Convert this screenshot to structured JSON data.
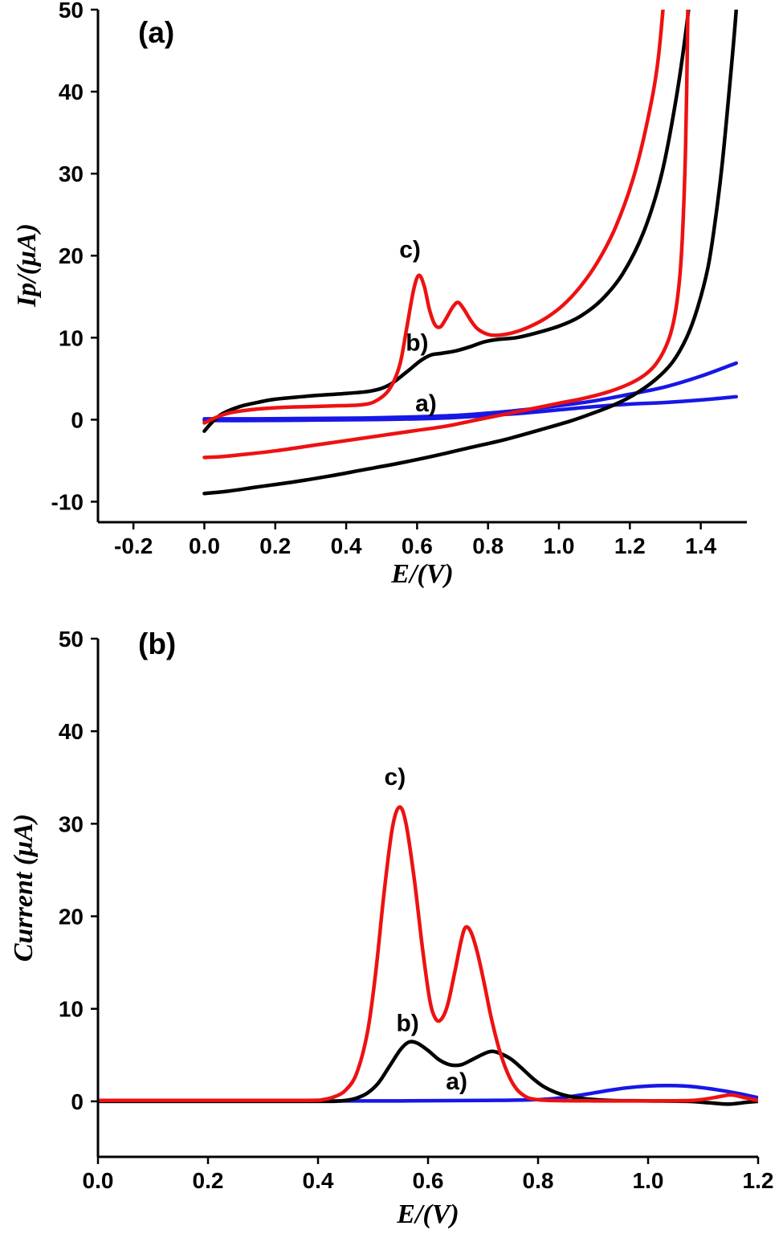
{
  "page": {
    "background": "#ffffff"
  },
  "chart_data": [
    {
      "id": "panel-a",
      "type": "line",
      "panel_label": "(a)",
      "xlabel": "E/(V)",
      "ylabel": "Ip/(μA)",
      "xlim": [
        -0.3,
        1.53
      ],
      "ylim": [
        -12.5,
        50
      ],
      "grid": false,
      "legend": "none",
      "xticks": [
        -0.2,
        0.0,
        0.2,
        0.4,
        0.6,
        0.8,
        1.0,
        1.2,
        1.4
      ],
      "xtick_labels": [
        "-0.2",
        "0.0",
        "0.2",
        "0.4",
        "0.6",
        "0.8",
        "1.0",
        "1.2",
        "1.4"
      ],
      "yticks": [
        -10,
        0,
        10,
        20,
        30,
        40,
        50
      ],
      "ytick_labels": [
        "-10",
        "0",
        "10",
        "20",
        "30",
        "40",
        "50"
      ],
      "annotations": [
        {
          "text": "c)",
          "x": 0.58,
          "y": 19.8
        },
        {
          "text": "b)",
          "x": 0.6,
          "y": 8.4
        },
        {
          "text": "a)",
          "x": 0.625,
          "y": 1.0
        }
      ],
      "series": [
        {
          "name": "a-blue-forward",
          "color": "#1717e6",
          "points": [
            [
              0.0,
              0.1
            ],
            [
              0.15,
              0.1
            ],
            [
              0.3,
              0.15
            ],
            [
              0.45,
              0.2
            ],
            [
              0.6,
              0.35
            ],
            [
              0.7,
              0.5
            ],
            [
              0.8,
              0.8
            ],
            [
              0.9,
              1.2
            ],
            [
              1.0,
              1.7
            ],
            [
              1.1,
              2.3
            ],
            [
              1.2,
              3.1
            ],
            [
              1.3,
              4.0
            ],
            [
              1.4,
              5.3
            ],
            [
              1.5,
              6.9
            ]
          ]
        },
        {
          "name": "a-blue-reverse",
          "color": "#1717e6",
          "points": [
            [
              1.5,
              2.8
            ],
            [
              1.4,
              2.4
            ],
            [
              1.3,
              2.1
            ],
            [
              1.2,
              1.9
            ],
            [
              1.1,
              1.6
            ],
            [
              1.0,
              1.2
            ],
            [
              0.9,
              0.8
            ],
            [
              0.8,
              0.5
            ],
            [
              0.7,
              0.25
            ],
            [
              0.6,
              0.1
            ],
            [
              0.45,
              0.0
            ],
            [
              0.3,
              -0.05
            ],
            [
              0.15,
              -0.1
            ],
            [
              0.0,
              -0.1
            ]
          ]
        },
        {
          "name": "b-black-forward",
          "color": "#000000",
          "points": [
            [
              0.0,
              -1.4
            ],
            [
              0.02,
              -0.4
            ],
            [
              0.05,
              0.7
            ],
            [
              0.1,
              1.6
            ],
            [
              0.15,
              2.1
            ],
            [
              0.2,
              2.5
            ],
            [
              0.3,
              2.9
            ],
            [
              0.4,
              3.2
            ],
            [
              0.47,
              3.5
            ],
            [
              0.52,
              4.2
            ],
            [
              0.57,
              5.8
            ],
            [
              0.61,
              7.2
            ],
            [
              0.64,
              7.9
            ],
            [
              0.67,
              8.1
            ],
            [
              0.71,
              8.4
            ],
            [
              0.75,
              8.9
            ],
            [
              0.79,
              9.5
            ],
            [
              0.83,
              9.8
            ],
            [
              0.88,
              10.0
            ],
            [
              0.93,
              10.5
            ],
            [
              1.0,
              11.4
            ],
            [
              1.06,
              12.6
            ],
            [
              1.12,
              14.6
            ],
            [
              1.18,
              17.8
            ],
            [
              1.24,
              23.0
            ],
            [
              1.29,
              30.0
            ],
            [
              1.33,
              39.0
            ],
            [
              1.36,
              48.0
            ],
            [
              1.38,
              56.0
            ]
          ]
        },
        {
          "name": "b-black-reverse",
          "color": "#000000",
          "points": [
            [
              1.505,
              56.0
            ],
            [
              1.5,
              50.0
            ],
            [
              1.48,
              40.0
            ],
            [
              1.46,
              31.0
            ],
            [
              1.44,
              24.0
            ],
            [
              1.42,
              18.5
            ],
            [
              1.39,
              13.5
            ],
            [
              1.36,
              10.0
            ],
            [
              1.32,
              7.0
            ],
            [
              1.27,
              4.8
            ],
            [
              1.21,
              3.0
            ],
            [
              1.15,
              1.7
            ],
            [
              1.09,
              0.7
            ],
            [
              1.03,
              -0.2
            ],
            [
              0.95,
              -1.2
            ],
            [
              0.85,
              -2.4
            ],
            [
              0.75,
              -3.4
            ],
            [
              0.65,
              -4.4
            ],
            [
              0.55,
              -5.3
            ],
            [
              0.45,
              -6.1
            ],
            [
              0.35,
              -6.9
            ],
            [
              0.25,
              -7.6
            ],
            [
              0.15,
              -8.2
            ],
            [
              0.07,
              -8.7
            ],
            [
              0.0,
              -9.0
            ]
          ]
        },
        {
          "name": "c-red-forward",
          "color": "#ee1111",
          "points": [
            [
              0.0,
              -0.4
            ],
            [
              0.04,
              0.4
            ],
            [
              0.08,
              0.9
            ],
            [
              0.15,
              1.3
            ],
            [
              0.22,
              1.5
            ],
            [
              0.3,
              1.6
            ],
            [
              0.38,
              1.7
            ],
            [
              0.44,
              1.8
            ],
            [
              0.48,
              2.2
            ],
            [
              0.52,
              3.6
            ],
            [
              0.55,
              6.5
            ],
            [
              0.57,
              11.0
            ],
            [
              0.59,
              15.8
            ],
            [
              0.605,
              17.6
            ],
            [
              0.62,
              16.3
            ],
            [
              0.635,
              13.4
            ],
            [
              0.65,
              11.6
            ],
            [
              0.665,
              11.3
            ],
            [
              0.68,
              12.2
            ],
            [
              0.7,
              13.7
            ],
            [
              0.715,
              14.3
            ],
            [
              0.73,
              13.6
            ],
            [
              0.75,
              12.2
            ],
            [
              0.77,
              11.1
            ],
            [
              0.8,
              10.4
            ],
            [
              0.83,
              10.3
            ],
            [
              0.87,
              10.6
            ],
            [
              0.91,
              11.2
            ],
            [
              0.96,
              12.3
            ],
            [
              1.01,
              13.9
            ],
            [
              1.06,
              16.2
            ],
            [
              1.11,
              19.3
            ],
            [
              1.16,
              23.5
            ],
            [
              1.21,
              29.5
            ],
            [
              1.25,
              36.5
            ],
            [
              1.28,
              44.0
            ],
            [
              1.305,
              56.0
            ]
          ]
        },
        {
          "name": "c-red-reverse",
          "color": "#ee1111",
          "points": [
            [
              1.365,
              56.0
            ],
            [
              1.362,
              45.0
            ],
            [
              1.357,
              33.0
            ],
            [
              1.35,
              24.0
            ],
            [
              1.342,
              18.0
            ],
            [
              1.33,
              13.5
            ],
            [
              1.315,
              10.5
            ],
            [
              1.295,
              8.3
            ],
            [
              1.27,
              6.6
            ],
            [
              1.24,
              5.4
            ],
            [
              1.2,
              4.4
            ],
            [
              1.14,
              3.4
            ],
            [
              1.07,
              2.6
            ],
            [
              1.0,
              2.0
            ],
            [
              0.92,
              1.3
            ],
            [
              0.84,
              0.6
            ],
            [
              0.76,
              -0.1
            ],
            [
              0.68,
              -0.8
            ],
            [
              0.6,
              -1.3
            ],
            [
              0.52,
              -1.8
            ],
            [
              0.44,
              -2.3
            ],
            [
              0.36,
              -2.8
            ],
            [
              0.28,
              -3.3
            ],
            [
              0.2,
              -3.8
            ],
            [
              0.12,
              -4.2
            ],
            [
              0.05,
              -4.5
            ],
            [
              0.0,
              -4.6
            ]
          ]
        }
      ]
    },
    {
      "id": "panel-b",
      "type": "line",
      "panel_label": "(b)",
      "xlabel": "E/(V)",
      "ylabel": "Current (μA)",
      "xlim": [
        0.0,
        1.2
      ],
      "ylim": [
        -6,
        50
      ],
      "grid": false,
      "legend": "none",
      "xticks": [
        0.0,
        0.2,
        0.4,
        0.6,
        0.8,
        1.0,
        1.2
      ],
      "xtick_labels": [
        "0.0",
        "0.2",
        "0.4",
        "0.6",
        "0.8",
        "1.0",
        "1.2"
      ],
      "yticks": [
        0,
        10,
        20,
        30,
        40,
        50
      ],
      "ytick_labels": [
        "0",
        "10",
        "20",
        "30",
        "40",
        "50"
      ],
      "annotations": [
        {
          "text": "c)",
          "x": 0.54,
          "y": 34.2
        },
        {
          "text": "b)",
          "x": 0.563,
          "y": 7.6
        },
        {
          "text": "a)",
          "x": 0.652,
          "y": 1.3
        }
      ],
      "series": [
        {
          "name": "a-blue",
          "color": "#1717e6",
          "points": [
            [
              0.0,
              0.05
            ],
            [
              0.3,
              0.05
            ],
            [
              0.55,
              0.05
            ],
            [
              0.7,
              0.1
            ],
            [
              0.78,
              0.15
            ],
            [
              0.83,
              0.3
            ],
            [
              0.88,
              0.7
            ],
            [
              0.92,
              1.1
            ],
            [
              0.96,
              1.45
            ],
            [
              1.0,
              1.65
            ],
            [
              1.04,
              1.7
            ],
            [
              1.08,
              1.6
            ],
            [
              1.12,
              1.3
            ],
            [
              1.16,
              0.9
            ],
            [
              1.2,
              0.4
            ]
          ]
        },
        {
          "name": "b-black",
          "color": "#000000",
          "points": [
            [
              0.0,
              0.0
            ],
            [
              0.3,
              0.0
            ],
            [
              0.42,
              0.0
            ],
            [
              0.45,
              0.1
            ],
            [
              0.47,
              0.35
            ],
            [
              0.49,
              0.9
            ],
            [
              0.51,
              2.0
            ],
            [
              0.53,
              3.8
            ],
            [
              0.55,
              5.6
            ],
            [
              0.565,
              6.4
            ],
            [
              0.58,
              6.3
            ],
            [
              0.6,
              5.5
            ],
            [
              0.62,
              4.5
            ],
            [
              0.64,
              3.95
            ],
            [
              0.66,
              3.95
            ],
            [
              0.68,
              4.5
            ],
            [
              0.7,
              5.1
            ],
            [
              0.715,
              5.4
            ],
            [
              0.73,
              5.2
            ],
            [
              0.75,
              4.6
            ],
            [
              0.77,
              3.6
            ],
            [
              0.79,
              2.5
            ],
            [
              0.81,
              1.6
            ],
            [
              0.835,
              0.9
            ],
            [
              0.86,
              0.5
            ],
            [
              0.89,
              0.25
            ],
            [
              0.93,
              0.1
            ],
            [
              1.0,
              0.05
            ],
            [
              1.07,
              0.0
            ],
            [
              1.11,
              -0.15
            ],
            [
              1.145,
              -0.3
            ],
            [
              1.18,
              -0.1
            ],
            [
              1.2,
              0.0
            ]
          ]
        },
        {
          "name": "c-red",
          "color": "#ee1111",
          "points": [
            [
              0.0,
              0.1
            ],
            [
              0.2,
              0.1
            ],
            [
              0.38,
              0.1
            ],
            [
              0.41,
              0.2
            ],
            [
              0.43,
              0.5
            ],
            [
              0.45,
              1.2
            ],
            [
              0.47,
              3.0
            ],
            [
              0.49,
              7.5
            ],
            [
              0.505,
              14.0
            ],
            [
              0.52,
              22.5
            ],
            [
              0.535,
              29.5
            ],
            [
              0.548,
              31.8
            ],
            [
              0.56,
              30.0
            ],
            [
              0.575,
              24.0
            ],
            [
              0.59,
              16.5
            ],
            [
              0.603,
              11.0
            ],
            [
              0.613,
              9.0
            ],
            [
              0.623,
              8.8
            ],
            [
              0.635,
              10.3
            ],
            [
              0.648,
              13.8
            ],
            [
              0.66,
              17.3
            ],
            [
              0.668,
              18.8
            ],
            [
              0.678,
              18.3
            ],
            [
              0.69,
              16.0
            ],
            [
              0.703,
              12.5
            ],
            [
              0.715,
              9.0
            ],
            [
              0.73,
              5.5
            ],
            [
              0.745,
              3.0
            ],
            [
              0.76,
              1.4
            ],
            [
              0.775,
              0.6
            ],
            [
              0.79,
              0.25
            ],
            [
              0.82,
              0.1
            ],
            [
              0.9,
              0.05
            ],
            [
              1.0,
              0.05
            ],
            [
              1.08,
              0.1
            ],
            [
              1.12,
              0.4
            ],
            [
              1.15,
              0.7
            ],
            [
              1.175,
              0.4
            ],
            [
              1.2,
              0.1
            ]
          ]
        }
      ]
    }
  ]
}
